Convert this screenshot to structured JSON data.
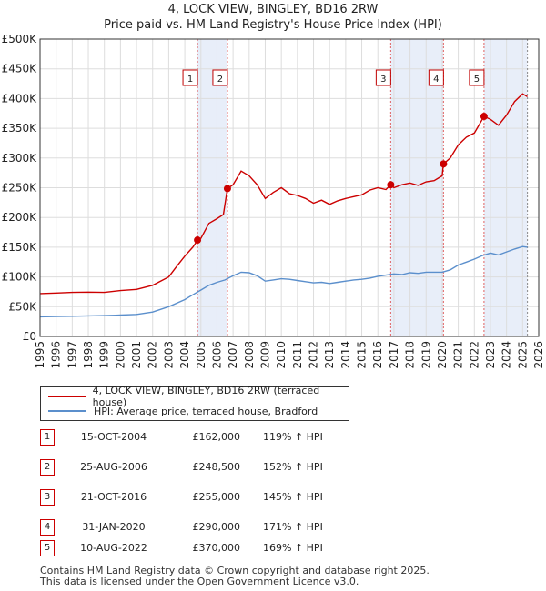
{
  "title_line1": "4, LOCK VIEW, BINGLEY, BD16 2RW",
  "title_line2": "Price paid vs. HM Land Registry's House Price Index (HPI)",
  "chart_data": {
    "type": "line",
    "xlim": [
      1995,
      2026
    ],
    "ylim": [
      0,
      500000
    ],
    "y_ticks": [
      0,
      50000,
      100000,
      150000,
      200000,
      250000,
      300000,
      350000,
      400000,
      450000,
      500000
    ],
    "y_tick_labels": [
      "£0",
      "£50K",
      "£100K",
      "£150K",
      "£200K",
      "£250K",
      "£300K",
      "£350K",
      "£400K",
      "£450K",
      "£500K"
    ],
    "x_ticks": [
      1995,
      1996,
      1997,
      1998,
      1999,
      2000,
      2001,
      2002,
      2003,
      2004,
      2005,
      2006,
      2007,
      2008,
      2009,
      2010,
      2011,
      2012,
      2013,
      2014,
      2015,
      2016,
      2017,
      2018,
      2019,
      2020,
      2021,
      2022,
      2023,
      2024,
      2025,
      2026
    ],
    "grid": true,
    "series": [
      {
        "name": "4, LOCK VIEW, BINGLEY, BD16 2RW (terraced house)",
        "color": "#cc0000",
        "points": [
          [
            1995.0,
            72000
          ],
          [
            1996.0,
            73000
          ],
          [
            1997.0,
            74000
          ],
          [
            1998.0,
            74500
          ],
          [
            1999.0,
            74000
          ],
          [
            2000.0,
            77000
          ],
          [
            2001.0,
            79000
          ],
          [
            2002.0,
            86000
          ],
          [
            2003.0,
            100000
          ],
          [
            2003.5,
            118000
          ],
          [
            2004.0,
            135000
          ],
          [
            2004.5,
            150000
          ],
          [
            2004.79,
            162000
          ],
          [
            2005.0,
            165000
          ],
          [
            2005.5,
            190000
          ],
          [
            2006.0,
            198000
          ],
          [
            2006.4,
            205000
          ],
          [
            2006.65,
            248500
          ],
          [
            2007.0,
            255000
          ],
          [
            2007.5,
            278000
          ],
          [
            2008.0,
            270000
          ],
          [
            2008.5,
            255000
          ],
          [
            2009.0,
            232000
          ],
          [
            2009.5,
            242000
          ],
          [
            2010.0,
            250000
          ],
          [
            2010.5,
            240000
          ],
          [
            2011.0,
            237000
          ],
          [
            2011.5,
            232000
          ],
          [
            2012.0,
            224000
          ],
          [
            2012.5,
            229000
          ],
          [
            2013.0,
            222000
          ],
          [
            2013.5,
            228000
          ],
          [
            2014.0,
            232000
          ],
          [
            2014.5,
            235000
          ],
          [
            2015.0,
            238000
          ],
          [
            2015.5,
            246000
          ],
          [
            2016.0,
            250000
          ],
          [
            2016.5,
            247000
          ],
          [
            2016.8,
            255000
          ],
          [
            2017.0,
            250000
          ],
          [
            2017.5,
            255000
          ],
          [
            2018.0,
            258000
          ],
          [
            2018.5,
            254000
          ],
          [
            2019.0,
            260000
          ],
          [
            2019.5,
            262000
          ],
          [
            2020.0,
            270000
          ],
          [
            2020.08,
            290000
          ],
          [
            2020.5,
            300000
          ],
          [
            2021.0,
            322000
          ],
          [
            2021.5,
            335000
          ],
          [
            2022.0,
            342000
          ],
          [
            2022.6,
            370000
          ],
          [
            2023.0,
            365000
          ],
          [
            2023.5,
            355000
          ],
          [
            2024.0,
            372000
          ],
          [
            2024.5,
            395000
          ],
          [
            2025.0,
            408000
          ],
          [
            2025.3,
            403000
          ]
        ]
      },
      {
        "name": "HPI: Average price, terraced house, Bradford",
        "color": "#5b8fcc",
        "points": [
          [
            1995.0,
            33000
          ],
          [
            1996.0,
            33500
          ],
          [
            1997.0,
            34000
          ],
          [
            1998.0,
            34500
          ],
          [
            1999.0,
            35000
          ],
          [
            2000.0,
            36000
          ],
          [
            2001.0,
            37000
          ],
          [
            2002.0,
            41000
          ],
          [
            2003.0,
            50000
          ],
          [
            2004.0,
            62000
          ],
          [
            2004.5,
            70000
          ],
          [
            2005.0,
            78000
          ],
          [
            2005.5,
            86000
          ],
          [
            2006.0,
            91000
          ],
          [
            2006.5,
            95000
          ],
          [
            2007.0,
            102000
          ],
          [
            2007.5,
            108000
          ],
          [
            2008.0,
            107000
          ],
          [
            2008.5,
            102000
          ],
          [
            2009.0,
            93000
          ],
          [
            2009.5,
            95000
          ],
          [
            2010.0,
            97000
          ],
          [
            2010.5,
            96000
          ],
          [
            2011.0,
            94000
          ],
          [
            2011.5,
            92000
          ],
          [
            2012.0,
            90000
          ],
          [
            2012.5,
            91000
          ],
          [
            2013.0,
            89000
          ],
          [
            2013.5,
            91000
          ],
          [
            2014.0,
            93000
          ],
          [
            2014.5,
            95000
          ],
          [
            2015.0,
            96000
          ],
          [
            2015.5,
            98000
          ],
          [
            2016.0,
            101000
          ],
          [
            2016.5,
            103000
          ],
          [
            2017.0,
            105000
          ],
          [
            2017.5,
            104000
          ],
          [
            2018.0,
            107000
          ],
          [
            2018.5,
            106000
          ],
          [
            2019.0,
            108000
          ],
          [
            2019.5,
            108000
          ],
          [
            2020.0,
            108000
          ],
          [
            2020.5,
            112000
          ],
          [
            2021.0,
            120000
          ],
          [
            2021.5,
            125000
          ],
          [
            2022.0,
            130000
          ],
          [
            2022.5,
            136000
          ],
          [
            2023.0,
            140000
          ],
          [
            2023.5,
            137000
          ],
          [
            2024.0,
            142000
          ],
          [
            2024.5,
            147000
          ],
          [
            2025.0,
            151000
          ],
          [
            2025.3,
            150000
          ]
        ]
      }
    ],
    "sale_markers": [
      {
        "label": "1",
        "x": 2004.79,
        "y": 162000
      },
      {
        "label": "2",
        "x": 2006.65,
        "y": 248500
      },
      {
        "label": "3",
        "x": 2016.8,
        "y": 255000
      },
      {
        "label": "4",
        "x": 2020.08,
        "y": 290000
      },
      {
        "label": "5",
        "x": 2022.6,
        "y": 370000
      }
    ],
    "shaded_ranges": [
      [
        2004.79,
        2006.65
      ],
      [
        2016.8,
        2020.08
      ],
      [
        2022.6,
        2025.3
      ]
    ]
  },
  "legend": {
    "property": "4, LOCK VIEW, BINGLEY, BD16 2RW (terraced house)",
    "hpi": "HPI: Average price, terraced house, Bradford"
  },
  "sales": [
    {
      "num": "1",
      "date": "15-OCT-2004",
      "price": "£162,000",
      "hpi": "119% ↑ HPI"
    },
    {
      "num": "2",
      "date": "25-AUG-2006",
      "price": "£248,500",
      "hpi": "152% ↑ HPI"
    },
    {
      "num": "3",
      "date": "21-OCT-2016",
      "price": "£255,000",
      "hpi": "145% ↑ HPI"
    },
    {
      "num": "4",
      "date": "31-JAN-2020",
      "price": "£290,000",
      "hpi": "171% ↑ HPI"
    },
    {
      "num": "5",
      "date": "10-AUG-2022",
      "price": "£370,000",
      "hpi": "169% ↑ HPI"
    }
  ],
  "footer_line1": "Contains HM Land Registry data © Crown copyright and database right 2025.",
  "footer_line2": "This data is licensed under the Open Government Licence v3.0."
}
